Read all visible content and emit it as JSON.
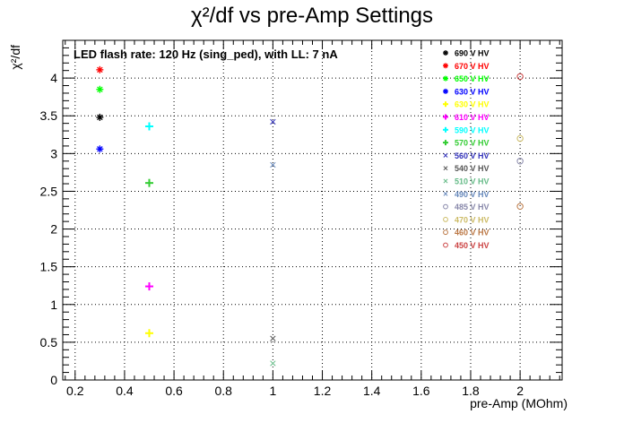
{
  "chart_data": {
    "type": "scatter",
    "title": "χ²/df vs pre-Amp Settings",
    "xlabel": "pre-Amp (MOhm)",
    "ylabel": "χ²/df",
    "annotation": "LED flash rate: 120 Hz  (sing_ped), with LL: 7 nA",
    "xlim": [
      0.15,
      2.17
    ],
    "ylim": [
      0,
      4.5
    ],
    "xticks": [
      "0.2",
      "0.4",
      "0.6",
      "0.8",
      "1",
      "1.2",
      "1.4",
      "1.6",
      "1.8",
      "2"
    ],
    "yticks": [
      "0",
      "0.5",
      "1",
      "1.5",
      "2",
      "2.5",
      "3",
      "3.5",
      "4"
    ],
    "grid": true,
    "legend_position": "top-right",
    "series": [
      {
        "name": "690 V HV",
        "color": "#000000",
        "marker": "star",
        "x": [
          0.3
        ],
        "y": [
          3.48
        ]
      },
      {
        "name": "670 V HV",
        "color": "#ff0000",
        "marker": "star",
        "x": [
          0.3
        ],
        "y": [
          4.11
        ]
      },
      {
        "name": "650 V HV",
        "color": "#00ff00",
        "marker": "star",
        "x": [
          0.3
        ],
        "y": [
          3.85
        ]
      },
      {
        "name": "630 V HV",
        "color": "#0000ff",
        "marker": "star",
        "x": [
          0.3
        ],
        "y": [
          3.06
        ]
      },
      {
        "name": "630 V HV",
        "color": "#ffff00",
        "marker": "plus",
        "x": [
          0.5
        ],
        "y": [
          0.62
        ]
      },
      {
        "name": "610 V HV",
        "color": "#ff00ff",
        "marker": "plus",
        "x": [
          0.5
        ],
        "y": [
          1.24
        ]
      },
      {
        "name": "590 V HV",
        "color": "#00ffff",
        "marker": "plus",
        "x": [
          0.5
        ],
        "y": [
          3.36
        ]
      },
      {
        "name": "570 V HV",
        "color": "#33cc33",
        "marker": "plus",
        "x": [
          0.5
        ],
        "y": [
          2.61
        ]
      },
      {
        "name": "560 V HV",
        "color": "#3333bb",
        "marker": "cross",
        "x": [
          1.0
        ],
        "y": [
          3.42
        ]
      },
      {
        "name": "540 V HV",
        "color": "#555555",
        "marker": "cross",
        "x": [
          1.0
        ],
        "y": [
          0.55
        ]
      },
      {
        "name": "510 V HV",
        "color": "#66bb88",
        "marker": "cross",
        "x": [
          1.0
        ],
        "y": [
          0.22
        ]
      },
      {
        "name": "490 V HV",
        "color": "#6688bb",
        "marker": "cross",
        "x": [
          1.0
        ],
        "y": [
          2.85
        ]
      },
      {
        "name": "485 V HV",
        "color": "#8888aa",
        "marker": "circle",
        "x": [
          2.0
        ],
        "y": [
          2.9
        ]
      },
      {
        "name": "470 V HV",
        "color": "#ccbb66",
        "marker": "circle",
        "x": [
          2.0
        ],
        "y": [
          3.2
        ]
      },
      {
        "name": "460 V HV",
        "color": "#bb7744",
        "marker": "circle",
        "x": [
          2.0
        ],
        "y": [
          2.3
        ]
      },
      {
        "name": "450 V HV",
        "color": "#cc4444",
        "marker": "circle",
        "x": [
          2.0
        ],
        "y": [
          4.02
        ]
      }
    ]
  }
}
